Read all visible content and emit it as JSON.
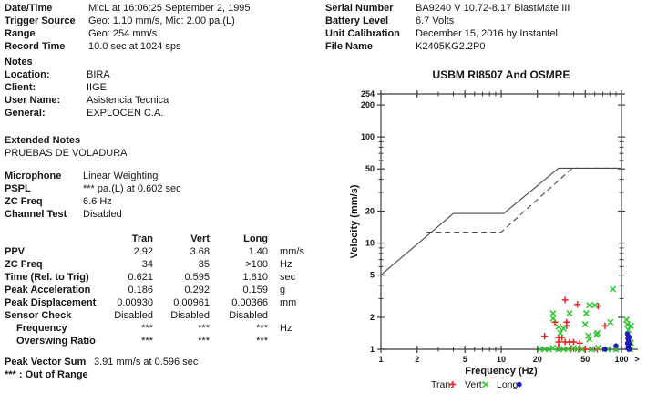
{
  "report": {
    "top_left": [
      {
        "label": "Date/Time",
        "value": "MicL at 16:06:25 September 2, 1995"
      },
      {
        "label": "Trigger Source",
        "value": "Geo: 1.10 mm/s, Mic: 2.00 pa.(L)"
      },
      {
        "label": "Range",
        "value": "Geo: 254 mm/s"
      },
      {
        "label": "Record Time",
        "value": "10.0 sec at 1024 sps"
      }
    ],
    "top_right": [
      {
        "label": "Serial Number",
        "value": "BA9240 V 10.72-8.17 BlastMate III"
      },
      {
        "label": "Battery Level",
        "value": "6.7 Volts"
      },
      {
        "label": "Unit Calibration",
        "value": "December 15, 2016 by Instantel"
      },
      {
        "label": "File Name",
        "value": "K2405KG2.2P0"
      }
    ],
    "notes": {
      "title": "Notes",
      "items": [
        {
          "label": "Location:",
          "value": "BIRA"
        },
        {
          "label": "Client:",
          "value": "IIGE"
        },
        {
          "label": "User Name:",
          "value": "Asistencia Tecnica"
        },
        {
          "label": "General:",
          "value": "EXPLOCEN C.A."
        }
      ]
    },
    "extended_notes": {
      "title": "Extended Notes",
      "text": "PRUEBAS DE VOLADURA"
    },
    "microphone": [
      {
        "label": "Microphone",
        "value": "Linear Weighting"
      },
      {
        "label": "PSPL",
        "value": "*** pa.(L) at 0.602 sec"
      },
      {
        "label": "ZC Freq",
        "value": "6.6 Hz"
      },
      {
        "label": "Channel Test",
        "value": "Disabled"
      }
    ],
    "results": {
      "columns": [
        "Tran",
        "Vert",
        "Long"
      ],
      "rows": [
        {
          "label": "PPV",
          "values": [
            "2.92",
            "3.68",
            "1.40"
          ],
          "unit": "mm/s",
          "indent": false
        },
        {
          "label": "ZC Freq",
          "values": [
            "34",
            "85",
            ">100"
          ],
          "unit": "Hz",
          "indent": false
        },
        {
          "label": "Time (Rel. to Trig)",
          "values": [
            "0.621",
            "0.595",
            "1.810"
          ],
          "unit": "sec",
          "indent": false
        },
        {
          "label": "Peak Acceleration",
          "values": [
            "0.186",
            "0.292",
            "0.159"
          ],
          "unit": "g",
          "indent": false
        },
        {
          "label": "Peak Displacement",
          "values": [
            "0.00930",
            "0.00961",
            "0.00366"
          ],
          "unit": "mm",
          "indent": false
        },
        {
          "label": "Sensor Check",
          "values": [
            "Disabled",
            "Disabled",
            "Disabled"
          ],
          "unit": "",
          "indent": false
        },
        {
          "label": "Frequency",
          "values": [
            "***",
            "***",
            "***"
          ],
          "unit": "Hz",
          "indent": true
        },
        {
          "label": "Overswing Ratio",
          "values": [
            "***",
            "***",
            "***"
          ],
          "unit": "",
          "indent": true
        }
      ]
    },
    "footer": {
      "pvs_label": "Peak Vector Sum",
      "pvs_value": "3.91 mm/s at 0.596 sec",
      "out_of_range_note": "*** : Out of Range"
    }
  },
  "chart_data": {
    "type": "scatter",
    "title": "USBM RI8507 And OSMRE",
    "xlabel": "Frequency (Hz)",
    "ylabel": "Velocity (mm/s)",
    "x_scale": "log",
    "y_scale": "log",
    "xlim": [
      1,
      100
    ],
    "ylim": [
      1,
      254
    ],
    "x_ticks": [
      1,
      2,
      5,
      10,
      20,
      50,
      100
    ],
    "x_minor_ticks": [
      3,
      4,
      6,
      7,
      8,
      9,
      30,
      40,
      60,
      70,
      80,
      90
    ],
    "x_overflow_label": ">",
    "y_ticks": [
      1,
      2,
      5,
      10,
      20,
      50,
      100,
      200,
      254
    ],
    "y_minor_ticks": [
      3,
      4,
      6,
      7,
      8,
      9,
      30,
      40,
      60,
      70,
      80,
      90
    ],
    "grid": false,
    "legend_position": "bottom",
    "axis_color": "#3c3c3c",
    "curves": [
      {
        "name": "USBM RI8507",
        "style": "solid",
        "color": "#4a4a4a",
        "points": [
          [
            1,
            5
          ],
          [
            4,
            19
          ],
          [
            10.5,
            19
          ],
          [
            30,
            50.8
          ],
          [
            100,
            50.8
          ]
        ]
      },
      {
        "name": "OSMRE",
        "style": "dashed",
        "color": "#4a4a4a",
        "points": [
          [
            2.4,
            12.7
          ],
          [
            10,
            12.7
          ],
          [
            39,
            50.8
          ],
          [
            100,
            50.8
          ]
        ]
      }
    ],
    "series": [
      {
        "name": "Tran",
        "marker": "plus",
        "color": "#e32222",
        "points": [
          [
            34,
            2.92
          ],
          [
            43,
            2.65
          ],
          [
            64,
            2.55
          ],
          [
            28,
            1.8
          ],
          [
            35,
            1.8
          ],
          [
            35,
            1.66
          ],
          [
            73,
            1.66
          ],
          [
            23,
            1.33
          ],
          [
            30,
            1.29
          ],
          [
            32,
            1.29
          ],
          [
            30,
            1.17
          ],
          [
            34,
            1.17
          ],
          [
            37,
            1.17
          ],
          [
            40,
            1.17
          ],
          [
            45,
            1.14
          ],
          [
            30,
            1.05
          ],
          [
            38,
            1.0
          ],
          [
            44,
            1.0
          ],
          [
            50,
            1.0
          ],
          [
            63,
            1.0
          ]
        ]
      },
      {
        "name": "Vert",
        "marker": "x",
        "color": "#2fc52f",
        "points": [
          [
            85,
            3.68
          ],
          [
            54,
            2.6
          ],
          [
            60,
            2.6
          ],
          [
            27,
            2.18
          ],
          [
            37,
            2.18
          ],
          [
            51,
            2.18
          ],
          [
            27,
            1.95
          ],
          [
            50,
            1.72
          ],
          [
            81,
            1.8
          ],
          [
            110,
            1.9
          ],
          [
            112,
            1.72
          ],
          [
            114,
            1.52
          ],
          [
            120,
            1.66
          ],
          [
            30,
            1.63
          ],
          [
            33,
            1.57
          ],
          [
            31,
            1.42
          ],
          [
            53,
            1.34
          ],
          [
            63,
            1.42
          ],
          [
            54,
            1.24
          ],
          [
            62,
            1.37
          ],
          [
            21,
            1.0
          ],
          [
            23,
            1.0
          ],
          [
            25,
            1.0
          ],
          [
            27,
            1.03
          ],
          [
            30,
            1.0
          ],
          [
            33,
            1.0
          ],
          [
            36,
            1.0
          ],
          [
            40,
            1.03
          ],
          [
            43,
            1.0
          ],
          [
            47,
            1.0
          ],
          [
            56,
            1.0
          ],
          [
            64,
            1.03
          ],
          [
            77,
            1.0
          ],
          [
            90,
            1.0
          ],
          [
            118,
            1.0
          ],
          [
            120,
            1.15
          ]
        ]
      },
      {
        "name": "Long",
        "marker": "circle",
        "color": "#1d1dbb",
        "points": [
          [
            73,
            1.0
          ],
          [
            90,
            1.08
          ],
          [
            112,
            1.4
          ],
          [
            114,
            1.33
          ],
          [
            113,
            1.26
          ],
          [
            115,
            1.2
          ],
          [
            112,
            1.14
          ],
          [
            114,
            1.08
          ],
          [
            113,
            1.02
          ],
          [
            115,
            1.0
          ],
          [
            116,
            1.3
          ],
          [
            116,
            1.12
          ],
          [
            117,
            1.0
          ]
        ]
      }
    ],
    "legend": [
      {
        "label": "Tran:",
        "marker": "plus",
        "color": "#e32222"
      },
      {
        "label": "Vert:",
        "marker": "x",
        "color": "#2fc52f"
      },
      {
        "label": "Long:",
        "marker": "circle",
        "color": "#1d1dbb"
      }
    ]
  }
}
